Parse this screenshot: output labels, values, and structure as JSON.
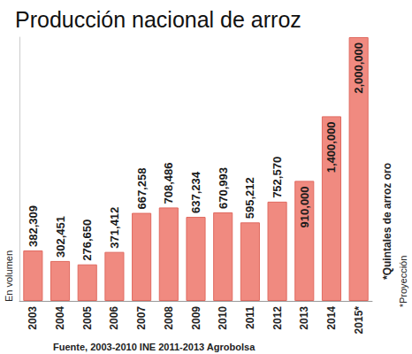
{
  "chart_data": {
    "type": "bar",
    "title": "Producción nacional de arroz",
    "y_label": "En volumen",
    "annotations": [
      "*Quintales de arroz oro",
      "*Proyección"
    ],
    "source": "Fuente, 2003-2010 INE 2011-2013 Agrobolsa",
    "categories": [
      "2003",
      "2004",
      "2005",
      "2006",
      "2007",
      "2008",
      "2009",
      "2010",
      "2011",
      "2012",
      "2013",
      "2014",
      "2015*"
    ],
    "values": [
      382309,
      302451,
      276650,
      371412,
      667258,
      708486,
      637234,
      670993,
      595212,
      752570,
      910000,
      1400000,
      2000000
    ],
    "value_labels": [
      "382,309",
      "302,451",
      "276,650",
      "371,412",
      "667,258",
      "708,486",
      "637,234",
      "670,993",
      "595,212",
      "752,570",
      "910,000",
      "1,400,000",
      "2,000,000"
    ],
    "color": "#f08a80",
    "ylim": [
      0,
      2000000
    ],
    "grid": false,
    "data_labels": true,
    "tick_labels": "x"
  }
}
